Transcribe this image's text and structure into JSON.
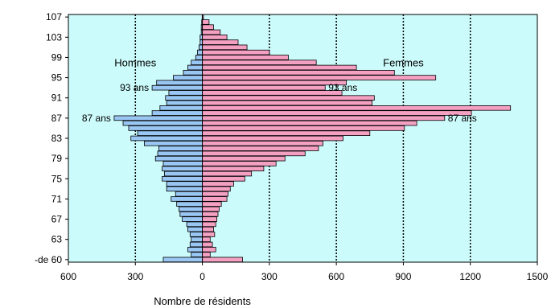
{
  "chart_data": {
    "type": "bar",
    "orientation": "horizontal",
    "subtype": "population-pyramid",
    "xlabel": "Nombre de résidents",
    "x_ticks": [
      "600",
      "300",
      "0",
      "300",
      "600",
      "900",
      "1200",
      "1500"
    ],
    "y_tick_labels": [
      "-de 60",
      "63",
      "67",
      "71",
      "75",
      "79",
      "83",
      "87",
      "91",
      "95",
      "99",
      "103",
      "107"
    ],
    "categories": [
      "-de 60",
      "60",
      "61",
      "62",
      "63",
      "64",
      "65",
      "66",
      "67",
      "68",
      "69",
      "70",
      "71",
      "72",
      "73",
      "74",
      "75",
      "76",
      "77",
      "78",
      "79",
      "80",
      "81",
      "82",
      "83",
      "84",
      "85",
      "86",
      "87",
      "88",
      "89",
      "90",
      "91",
      "92",
      "93",
      "94",
      "95",
      "96",
      "97",
      "98",
      "99",
      "100",
      "101",
      "102",
      "103",
      "104",
      "105",
      "106",
      "107"
    ],
    "series": [
      {
        "name": "Hommes",
        "color": "#99c6f2",
        "values": [
          175,
          50,
          65,
          55,
          50,
          55,
          65,
          70,
          90,
          100,
          105,
          115,
          140,
          120,
          160,
          160,
          180,
          170,
          180,
          175,
          210,
          200,
          195,
          260,
          320,
          290,
          330,
          355,
          395,
          225,
          190,
          160,
          165,
          150,
          225,
          205,
          130,
          85,
          65,
          50,
          30,
          22,
          15,
          10,
          10,
          5,
          5,
          3,
          1
        ]
      },
      {
        "name": "Femmes",
        "color": "#f4a0c2",
        "values": [
          180,
          35,
          60,
          45,
          35,
          55,
          50,
          60,
          65,
          70,
          75,
          85,
          110,
          115,
          125,
          140,
          190,
          220,
          275,
          330,
          370,
          460,
          520,
          540,
          630,
          750,
          905,
          960,
          1085,
          1205,
          1380,
          760,
          770,
          625,
          550,
          645,
          1045,
          860,
          690,
          510,
          385,
          300,
          200,
          160,
          110,
          80,
          50,
          30,
          5
        ]
      }
    ],
    "xlim": [
      -600,
      1500
    ],
    "legend": {
      "left": "Hommes",
      "right": "Femmes"
    },
    "annotations": [
      {
        "text": "93 ans",
        "category": "93",
        "side": "left"
      },
      {
        "text": "93 ans",
        "category": "93",
        "side": "right"
      },
      {
        "text": "87 ans",
        "category": "87",
        "side": "left"
      },
      {
        "text": "87 ans",
        "category": "87",
        "side": "right"
      }
    ],
    "grid": "vertical dashed",
    "plot_background": "#ccfbfb"
  }
}
